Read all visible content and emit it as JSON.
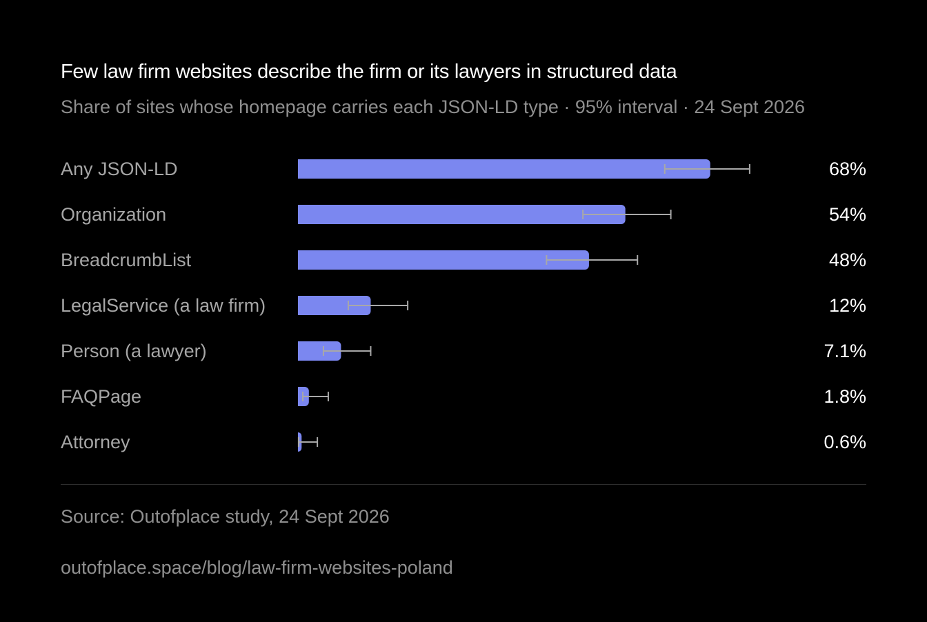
{
  "colors": {
    "background": "#000000",
    "bar": "#7b87f0",
    "error_bar": "#a8a8a8",
    "label": "#a6a6a6",
    "value": "#ffffff",
    "muted": "#8f8f8f"
  },
  "chart_data": {
    "type": "bar",
    "orientation": "horizontal",
    "title": "Few law firm websites describe the firm or its lawyers in structured data",
    "subtitle": "Share of sites whose homepage carries each JSON-LD type · 95% interval · 24 Sept 2026",
    "xlim": [
      0,
      100
    ],
    "grid": false,
    "categories": [
      "Any JSON-LD",
      "Organization",
      "BreadcrumbList",
      "LegalService (a law firm)",
      "Person (a lawyer)",
      "FAQPage",
      "Attorney"
    ],
    "values": [
      68,
      54,
      48,
      12,
      7.1,
      1.8,
      0.6
    ],
    "value_labels": [
      "68%",
      "54%",
      "48%",
      "12%",
      "7.1%",
      "1.8%",
      "0.6%"
    ],
    "ci_low": [
      60.5,
      47,
      41,
      8.3,
      4.2,
      0.8,
      0.1
    ],
    "ci_high": [
      74.5,
      61.5,
      56,
      18.1,
      12,
      5,
      3.2
    ]
  },
  "footer": {
    "source": "Source: Outofplace study, 24 Sept 2026",
    "url": "outofplace.space/blog/law-firm-websites-poland"
  }
}
